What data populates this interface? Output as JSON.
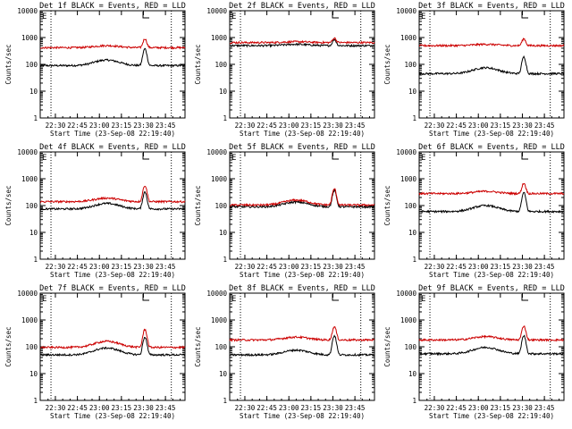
{
  "chart_data": [
    {
      "type": "line",
      "title": "Det 1f BLACK = Events, RED = LLD",
      "ylabel": "Counts/sec",
      "xlabel": "Start Time (23-Sep-08 22:19:40)",
      "yscale": "log",
      "ylim": [
        1,
        10000
      ],
      "xlim_minutes": [
        "22:19",
        "23:58"
      ],
      "x_ticks": [
        "22:30",
        "22:45",
        "23:00",
        "23:15",
        "23:30",
        "23:45"
      ],
      "y_ticks": [
        "1",
        "10",
        "100",
        "1000",
        "10000"
      ],
      "dotted_vlines": [
        "22:27",
        "23:49"
      ],
      "marker": "E",
      "series": [
        {
          "color": "#000000",
          "baseline": 90,
          "bump": 145,
          "peak": 380
        },
        {
          "color": "#cc0000",
          "baseline": 420,
          "bump": 500,
          "peak": 900
        }
      ]
    },
    {
      "type": "line",
      "title": "Det 2f BLACK = Events, RED = LLD",
      "ylabel": "Counts/sec",
      "xlabel": "Start Time (23-Sep-08 22:19:40)",
      "yscale": "log",
      "ylim": [
        1,
        10000
      ],
      "x_ticks": [
        "22:30",
        "22:45",
        "23:00",
        "23:15",
        "23:30",
        "23:45"
      ],
      "y_ticks": [
        "1",
        "10",
        "100",
        "1000",
        "10000"
      ],
      "dotted_vlines": [
        "22:27",
        "23:49"
      ],
      "marker": "E",
      "series": [
        {
          "color": "#000000",
          "baseline": 500,
          "bump": 560,
          "peak": 850
        },
        {
          "color": "#cc0000",
          "baseline": 650,
          "bump": 700,
          "peak": 950
        }
      ]
    },
    {
      "type": "line",
      "title": "Det 3f BLACK = Events, RED = LLD",
      "ylabel": "Counts/sec",
      "xlabel": "Start Time (23-Sep-08 22:19:40)",
      "yscale": "log",
      "ylim": [
        1,
        10000
      ],
      "x_ticks": [
        "22:30",
        "22:45",
        "23:00",
        "23:15",
        "23:30",
        "23:45"
      ],
      "y_ticks": [
        "1",
        "10",
        "100",
        "1000",
        "10000"
      ],
      "dotted_vlines": [
        "22:27",
        "23:49"
      ],
      "marker": "E",
      "series": [
        {
          "color": "#000000",
          "baseline": 45,
          "bump": 75,
          "peak": 190
        },
        {
          "color": "#cc0000",
          "baseline": 500,
          "bump": 560,
          "peak": 900
        }
      ]
    },
    {
      "type": "line",
      "title": "Det 4f BLACK = Events, RED = LLD",
      "ylabel": "Counts/sec",
      "xlabel": "Start Time (23-Sep-08 22:19:40)",
      "yscale": "log",
      "ylim": [
        1,
        10000
      ],
      "x_ticks": [
        "22:30",
        "22:45",
        "23:00",
        "23:15",
        "23:30",
        "23:45"
      ],
      "y_ticks": [
        "1",
        "10",
        "100",
        "1000",
        "10000"
      ],
      "dotted_vlines": [
        "22:27",
        "23:49"
      ],
      "marker": "E",
      "series": [
        {
          "color": "#000000",
          "baseline": 75,
          "bump": 120,
          "peak": 320
        },
        {
          "color": "#cc0000",
          "baseline": 140,
          "bump": 190,
          "peak": 560
        }
      ]
    },
    {
      "type": "line",
      "title": "Det 5f BLACK = Events, RED = LLD",
      "ylabel": "Counts/sec",
      "xlabel": "Start Time (23-Sep-08 22:19:40)",
      "yscale": "log",
      "ylim": [
        1,
        10000
      ],
      "x_ticks": [
        "22:30",
        "22:45",
        "23:00",
        "23:15",
        "23:30",
        "23:45"
      ],
      "y_ticks": [
        "1",
        "10",
        "100",
        "1000",
        "10000"
      ],
      "dotted_vlines": [
        "22:27",
        "23:49"
      ],
      "marker": "E",
      "series": [
        {
          "color": "#000000",
          "baseline": 90,
          "bump": 135,
          "peak": 360
        },
        {
          "color": "#cc0000",
          "baseline": 105,
          "bump": 160,
          "peak": 420
        }
      ]
    },
    {
      "type": "line",
      "title": "Det 6f BLACK = Events, RED = LLD",
      "ylabel": "Counts/sec",
      "xlabel": "Start Time (23-Sep-08 22:19:40)",
      "yscale": "log",
      "ylim": [
        1,
        10000
      ],
      "x_ticks": [
        "22:30",
        "22:45",
        "23:00",
        "23:15",
        "23:30",
        "23:45"
      ],
      "y_ticks": [
        "1",
        "10",
        "100",
        "1000",
        "10000"
      ],
      "dotted_vlines": [
        "22:27",
        "23:49"
      ],
      "marker": "E",
      "series": [
        {
          "color": "#000000",
          "baseline": 60,
          "bump": 100,
          "peak": 300
        },
        {
          "color": "#cc0000",
          "baseline": 280,
          "bump": 340,
          "peak": 680
        }
      ]
    },
    {
      "type": "line",
      "title": "Det 7f BLACK = Events, RED = LLD",
      "ylabel": "Counts/sec",
      "xlabel": "Start Time (23-Sep-08 22:19:40)",
      "yscale": "log",
      "ylim": [
        1,
        10000
      ],
      "x_ticks": [
        "22:30",
        "22:45",
        "23:00",
        "23:15",
        "23:30",
        "23:45"
      ],
      "y_ticks": [
        "1",
        "10",
        "100",
        "1000",
        "10000"
      ],
      "dotted_vlines": [
        "22:27",
        "23:49"
      ],
      "marker": "E",
      "series": [
        {
          "color": "#000000",
          "baseline": 50,
          "bump": 90,
          "peak": 230
        },
        {
          "color": "#cc0000",
          "baseline": 95,
          "bump": 160,
          "peak": 440
        }
      ]
    },
    {
      "type": "line",
      "title": "Det 8f BLACK = Events, RED = LLD",
      "ylabel": "Counts/sec",
      "xlabel": "Start Time (23-Sep-08 22:19:40)",
      "yscale": "log",
      "ylim": [
        1,
        10000
      ],
      "x_ticks": [
        "22:30",
        "22:45",
        "23:00",
        "23:15",
        "23:30",
        "23:45"
      ],
      "y_ticks": [
        "1",
        "10",
        "100",
        "1000",
        "10000"
      ],
      "dotted_vlines": [
        "22:27",
        "23:49"
      ],
      "marker": "E",
      "series": [
        {
          "color": "#000000",
          "baseline": 50,
          "bump": 75,
          "peak": 260
        },
        {
          "color": "#cc0000",
          "baseline": 180,
          "bump": 230,
          "peak": 560
        }
      ]
    },
    {
      "type": "line",
      "title": "Det 9f BLACK = Events, RED = LLD",
      "ylabel": "Counts/sec",
      "xlabel": "Start Time (23-Sep-08 22:19:40)",
      "yscale": "log",
      "ylim": [
        1,
        10000
      ],
      "x_ticks": [
        "22:30",
        "22:45",
        "23:00",
        "23:15",
        "23:30",
        "23:45"
      ],
      "y_ticks": [
        "1",
        "10",
        "100",
        "1000",
        "10000"
      ],
      "dotted_vlines": [
        "22:27",
        "23:49"
      ],
      "marker": "E",
      "series": [
        {
          "color": "#000000",
          "baseline": 55,
          "bump": 95,
          "peak": 260
        },
        {
          "color": "#cc0000",
          "baseline": 180,
          "bump": 240,
          "peak": 600
        }
      ]
    }
  ]
}
